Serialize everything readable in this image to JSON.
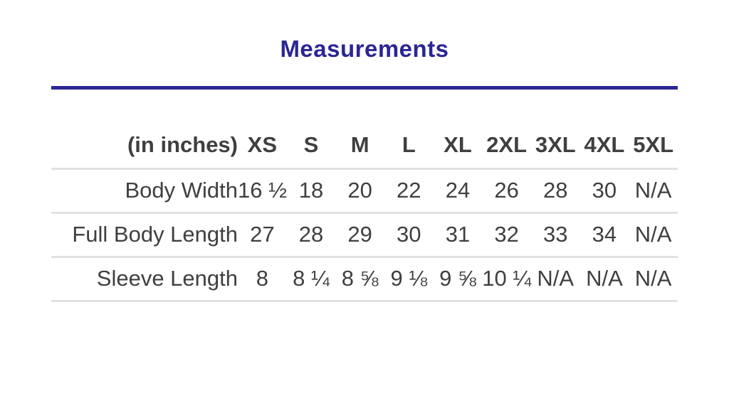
{
  "page": {
    "accent_color": "#2b2693",
    "text_color": "#3f3f3f",
    "divider_color": "#e1e1e1"
  },
  "chart_data": {
    "type": "table",
    "title": "Measurements",
    "unit_label": "(in inches)",
    "columns": [
      "XS",
      "S",
      "M",
      "L",
      "XL",
      "2XL",
      "3XL",
      "4XL",
      "5XL"
    ],
    "rows": [
      {
        "label": "Body Width",
        "values": [
          "16 ½",
          "18",
          "20",
          "22",
          "24",
          "26",
          "28",
          "30",
          "N/A"
        ]
      },
      {
        "label": "Full Body Length",
        "values": [
          "27",
          "28",
          "29",
          "30",
          "31",
          "32",
          "33",
          "34",
          "N/A"
        ]
      },
      {
        "label": "Sleeve Length",
        "values": [
          "8",
          "8 ¼",
          "8 ⅝",
          "9 ⅛",
          "9 ⅝",
          "10 ¼",
          "N/A",
          "N/A",
          "N/A"
        ]
      }
    ]
  }
}
